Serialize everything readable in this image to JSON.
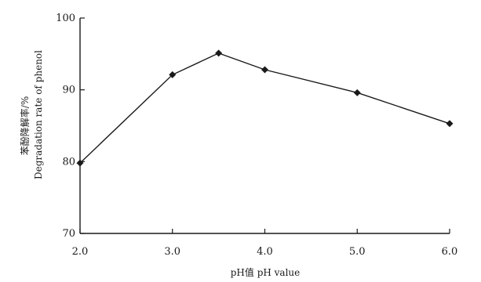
{
  "chart_data": {
    "type": "line",
    "title": "",
    "xlabel": "pH值 pH value",
    "ylabel_cn": "苯酚降解率/%",
    "ylabel_en": "Degradation rate of phenol",
    "xlim": [
      2.0,
      6.0
    ],
    "ylim": [
      70,
      100
    ],
    "x_ticks": [
      2.0,
      3.0,
      4.0,
      5.0,
      6.0
    ],
    "x_tick_labels": [
      "2.0",
      "3.0",
      "4.0",
      "5.0",
      "6.0"
    ],
    "y_ticks": [
      70,
      80,
      90,
      100
    ],
    "y_tick_labels": [
      "70",
      "80",
      "90",
      "100"
    ],
    "grid": false,
    "marker": "diamond",
    "series": [
      {
        "x": [
          2.0,
          3.0,
          3.5,
          4.0,
          5.0,
          6.0
        ],
        "values": [
          79.8,
          92.1,
          95.1,
          92.8,
          89.6,
          85.3
        ]
      }
    ],
    "color": "#1a1a1a"
  }
}
